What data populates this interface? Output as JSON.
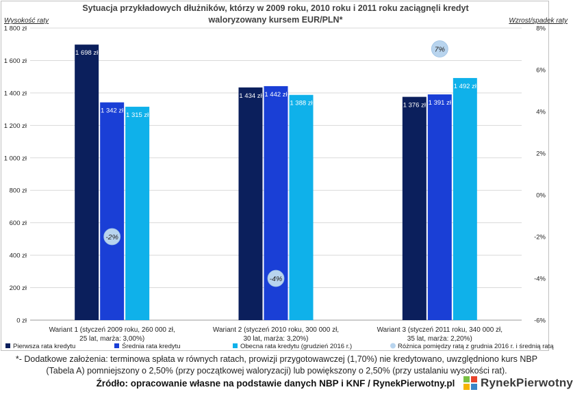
{
  "chart_data": {
    "type": "bar",
    "title_line1": "Sytuacja przykładowych dłużników, którzy w 2009 roku, 2010 roku i 2011 roku zaciągnęli kredyt",
    "title_line2": "waloryzowany kursem EUR/PLN*",
    "ylabel_left": "Wysokość raty",
    "ylabel_right": "Wzrost/spadek raty",
    "ylim_left": [
      0,
      1800
    ],
    "ylim_right": [
      -6,
      8
    ],
    "left_ticks": [
      "0 zł",
      "200 zł",
      "400 zł",
      "600 zł",
      "800 zł",
      "1 000 zł",
      "1 200 zł",
      "1 400 zł",
      "1 600 zł",
      "1 800 zł"
    ],
    "right_ticks": [
      "-6%",
      "-4%",
      "-2%",
      "0%",
      "2%",
      "4%",
      "6%",
      "8%"
    ],
    "categories": [
      [
        "Wariant 1 (styczeń 2009 roku, 260 000 zł,",
        "25 lat, marża: 3,00%)"
      ],
      [
        "Wariant 2 (styczeń 2010 roku, 300 000 zł,",
        "30 lat, marża: 3,20%)"
      ],
      [
        "Wariant 3 (styczeń 2011 roku, 340 000 zł,",
        "35 lat, marża: 2,20%)"
      ]
    ],
    "series": [
      {
        "name": "Pierwsza rata kredytu",
        "color": "#0b1f5c",
        "values": [
          1698,
          1434,
          1376
        ],
        "labels": [
          "1 698 zł",
          "1 434 zł",
          "1 376 zł"
        ]
      },
      {
        "name": "Średnia rata kredytu",
        "color": "#1a3fd6",
        "values": [
          1342,
          1442,
          1391
        ],
        "labels": [
          "1 342 zł",
          "1 442 zł",
          "1 391 zł"
        ]
      },
      {
        "name": "Obecna rata kredytu (grudzień 2016 r.)",
        "color": "#0fb1ea",
        "values": [
          1315,
          1388,
          1492
        ],
        "labels": [
          "1 315 zł",
          "1 388 zł",
          "1 492 zł"
        ]
      },
      {
        "name": "Różnica pomiędzy ratą z grudnia 2016 r. i średnią ratą",
        "color": "#b8d4ee",
        "values": [
          -2,
          -4,
          7
        ],
        "labels": [
          "-2%",
          "-4%",
          "7%"
        ]
      }
    ]
  },
  "footnote": "*- Dodatkowe założenia: terminowa spłata w równych ratach, prowizji przygotowawczej (1,70%) nie kredytowano, uwzględniono kurs NBP (Tabela A) pomniejszony o 2,50% (przy początkowej waloryzacji) lub powiększony o 2,50% (przy ustalaniu wysokości rat).",
  "source": "Źródło: opracowanie własne na podstawie danych NBP i KNF / RynekPierwotny.pl",
  "logo": {
    "text": "RynekPierwotny"
  }
}
